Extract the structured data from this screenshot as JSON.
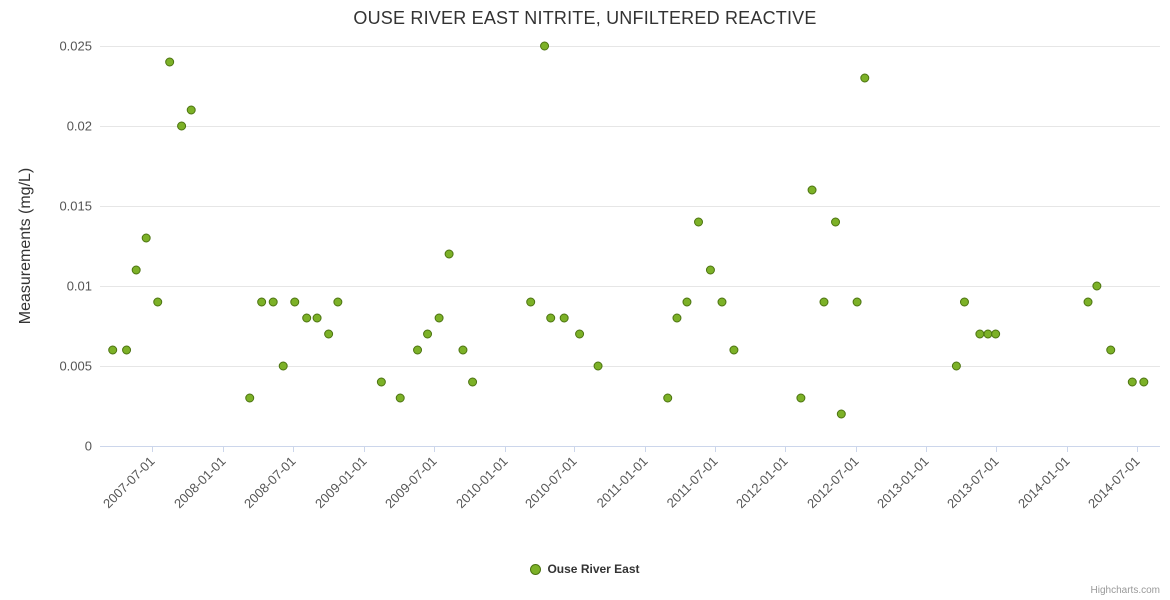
{
  "title": "OUSE RIVER EAST NITRITE, UNFILTERED REACTIVE",
  "credits": "Highcharts.com",
  "legend": {
    "items": [
      {
        "label": "Ouse River East",
        "color": "#7cb127"
      }
    ]
  },
  "colors": {
    "grid": "#e6e6e6",
    "axis_line": "#ccd6eb",
    "title": "#333333",
    "label": "#555555",
    "point_fill": "#7cb127",
    "point_stroke": "#4c7311",
    "legend_text": "#333333",
    "credits": "#999999"
  },
  "chart_data": {
    "type": "scatter",
    "title": "OUSE RIVER EAST NITRITE, UNFILTERED REACTIVE",
    "xlabel": "",
    "ylabel": "Measurements (mg/L)",
    "ylim": [
      0,
      0.025
    ],
    "y_ticks": [
      0,
      0.005,
      0.01,
      0.015,
      0.02,
      0.025
    ],
    "y_tick_labels": [
      "0",
      "0.005",
      "0.01",
      "0.015",
      "0.02",
      "0.025"
    ],
    "x_tick_labels": [
      "2007-07-01",
      "2008-01-01",
      "2008-07-01",
      "2009-01-01",
      "2009-07-01",
      "2010-01-01",
      "2010-07-01",
      "2011-01-01",
      "2011-07-01",
      "2012-01-01",
      "2012-07-01",
      "2013-01-01",
      "2013-07-01",
      "2014-01-01",
      "2014-07-01"
    ],
    "x_range": [
      "2007-02-15",
      "2014-08-31"
    ],
    "grid": "horizontal",
    "legend_position": "bottom",
    "series": [
      {
        "name": "Ouse River East",
        "color": "#7cb127",
        "stroke": "#4c7311",
        "marker": "circle",
        "points": [
          [
            "2007-03-20",
            0.006
          ],
          [
            "2007-04-25",
            0.006
          ],
          [
            "2007-05-20",
            0.011
          ],
          [
            "2007-06-15",
            0.013
          ],
          [
            "2007-07-15",
            0.009
          ],
          [
            "2007-08-15",
            0.024
          ],
          [
            "2007-09-15",
            0.02
          ],
          [
            "2007-10-10",
            0.021
          ],
          [
            "2008-03-10",
            0.003
          ],
          [
            "2008-04-10",
            0.009
          ],
          [
            "2008-05-10",
            0.009
          ],
          [
            "2008-06-05",
            0.005
          ],
          [
            "2008-07-05",
            0.009
          ],
          [
            "2008-08-05",
            0.008
          ],
          [
            "2008-09-01",
            0.008
          ],
          [
            "2008-10-01",
            0.007
          ],
          [
            "2008-10-25",
            0.009
          ],
          [
            "2009-02-15",
            0.004
          ],
          [
            "2009-04-05",
            0.003
          ],
          [
            "2009-05-20",
            0.006
          ],
          [
            "2009-06-15",
            0.007
          ],
          [
            "2009-07-15",
            0.008
          ],
          [
            "2009-08-10",
            0.012
          ],
          [
            "2009-09-15",
            0.006
          ],
          [
            "2009-10-10",
            0.004
          ],
          [
            "2010-03-10",
            0.009
          ],
          [
            "2010-04-15",
            0.025
          ],
          [
            "2010-05-01",
            0.008
          ],
          [
            "2010-06-05",
            0.008
          ],
          [
            "2010-07-15",
            0.007
          ],
          [
            "2010-09-01",
            0.005
          ],
          [
            "2011-03-01",
            0.003
          ],
          [
            "2011-03-25",
            0.008
          ],
          [
            "2011-04-20",
            0.009
          ],
          [
            "2011-05-20",
            0.014
          ],
          [
            "2011-06-20",
            0.011
          ],
          [
            "2011-07-20",
            0.009
          ],
          [
            "2011-08-20",
            0.006
          ],
          [
            "2012-02-10",
            0.003
          ],
          [
            "2012-03-10",
            0.016
          ],
          [
            "2012-04-10",
            0.009
          ],
          [
            "2012-05-10",
            0.014
          ],
          [
            "2012-05-25",
            0.002
          ],
          [
            "2012-07-05",
            0.009
          ],
          [
            "2012-07-25",
            0.023
          ],
          [
            "2013-03-20",
            0.005
          ],
          [
            "2013-04-10",
            0.009
          ],
          [
            "2013-05-20",
            0.007
          ],
          [
            "2013-06-10",
            0.007
          ],
          [
            "2013-06-30",
            0.007
          ],
          [
            "2014-02-25",
            0.009
          ],
          [
            "2014-03-20",
            0.01
          ],
          [
            "2014-04-25",
            0.006
          ],
          [
            "2014-06-20",
            0.004
          ],
          [
            "2014-07-20",
            0.004
          ]
        ]
      }
    ]
  }
}
